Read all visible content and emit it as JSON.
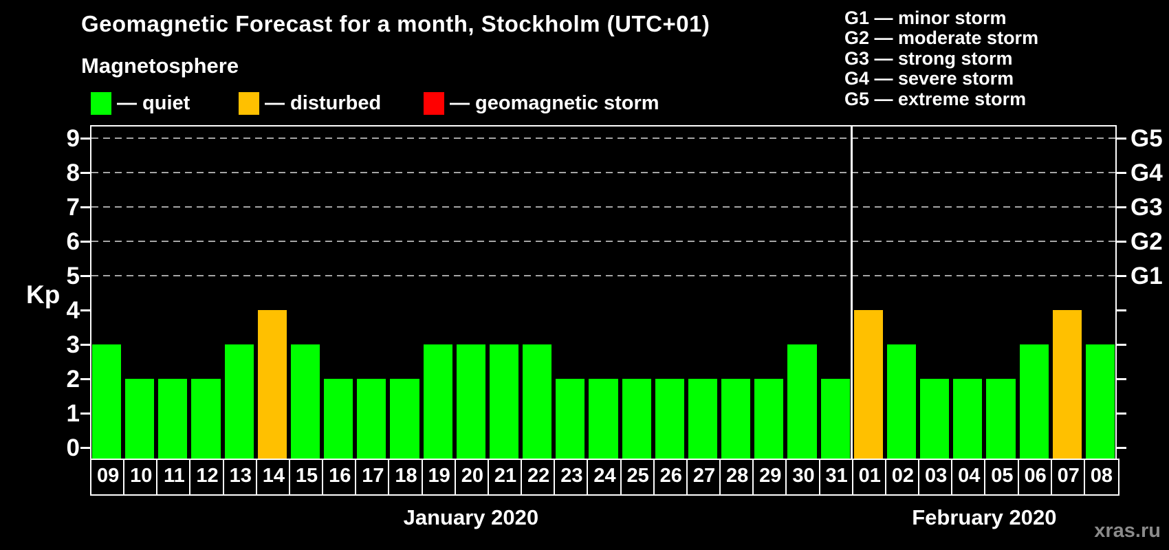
{
  "title": "Geomagnetic Forecast for a month, Stockholm (UTC+01)",
  "legend": {
    "heading": "Magnetosphere",
    "items": [
      {
        "key": "quiet",
        "label": "— quiet",
        "color": "#00ff00"
      },
      {
        "key": "disturbed",
        "label": "— disturbed",
        "color": "#ffc000"
      },
      {
        "key": "storm",
        "label": "— geomagnetic storm",
        "color": "#ff0000"
      }
    ]
  },
  "storm_scale": {
    "lines": [
      "G1 — minor storm",
      "G2 — moderate storm",
      "G3 — strong storm",
      "G4 — severe storm",
      "G5 — extreme storm"
    ]
  },
  "watermark": "xras.ru",
  "chart_data": {
    "type": "bar",
    "title": "Geomagnetic Forecast for a month, Stockholm (UTC+01)",
    "ylabel": "Kp",
    "ylim": [
      0,
      9
    ],
    "y_ticks": [
      0,
      1,
      2,
      3,
      4,
      5,
      6,
      7,
      8,
      9
    ],
    "grid_kp": [
      5,
      6,
      7,
      8,
      9
    ],
    "right_axis_labels": [
      {
        "kp": 5,
        "label": "G1"
      },
      {
        "kp": 6,
        "label": "G2"
      },
      {
        "kp": 7,
        "label": "G3"
      },
      {
        "kp": 8,
        "label": "G4"
      },
      {
        "kp": 9,
        "label": "G5"
      }
    ],
    "legend_position": "top",
    "grid": "horizontal-dashed",
    "groups": [
      {
        "month": "January 2020",
        "days": [
          {
            "day": "09",
            "kp": 3,
            "status": "quiet"
          },
          {
            "day": "10",
            "kp": 2,
            "status": "quiet"
          },
          {
            "day": "11",
            "kp": 2,
            "status": "quiet"
          },
          {
            "day": "12",
            "kp": 2,
            "status": "quiet"
          },
          {
            "day": "13",
            "kp": 3,
            "status": "quiet"
          },
          {
            "day": "14",
            "kp": 4,
            "status": "disturbed"
          },
          {
            "day": "15",
            "kp": 3,
            "status": "quiet"
          },
          {
            "day": "16",
            "kp": 2,
            "status": "quiet"
          },
          {
            "day": "17",
            "kp": 2,
            "status": "quiet"
          },
          {
            "day": "18",
            "kp": 2,
            "status": "quiet"
          },
          {
            "day": "19",
            "kp": 3,
            "status": "quiet"
          },
          {
            "day": "20",
            "kp": 3,
            "status": "quiet"
          },
          {
            "day": "21",
            "kp": 3,
            "status": "quiet"
          },
          {
            "day": "22",
            "kp": 3,
            "status": "quiet"
          },
          {
            "day": "23",
            "kp": 2,
            "status": "quiet"
          },
          {
            "day": "24",
            "kp": 2,
            "status": "quiet"
          },
          {
            "day": "25",
            "kp": 2,
            "status": "quiet"
          },
          {
            "day": "26",
            "kp": 2,
            "status": "quiet"
          },
          {
            "day": "27",
            "kp": 2,
            "status": "quiet"
          },
          {
            "day": "28",
            "kp": 2,
            "status": "quiet"
          },
          {
            "day": "29",
            "kp": 2,
            "status": "quiet"
          },
          {
            "day": "30",
            "kp": 3,
            "status": "quiet"
          },
          {
            "day": "31",
            "kp": 2,
            "status": "quiet"
          }
        ]
      },
      {
        "month": "February 2020",
        "days": [
          {
            "day": "01",
            "kp": 4,
            "status": "disturbed"
          },
          {
            "day": "02",
            "kp": 3,
            "status": "quiet"
          },
          {
            "day": "03",
            "kp": 2,
            "status": "quiet"
          },
          {
            "day": "04",
            "kp": 2,
            "status": "quiet"
          },
          {
            "day": "05",
            "kp": 2,
            "status": "quiet"
          },
          {
            "day": "06",
            "kp": 3,
            "status": "quiet"
          },
          {
            "day": "07",
            "kp": 4,
            "status": "disturbed"
          },
          {
            "day": "08",
            "kp": 3,
            "status": "quiet"
          }
        ]
      }
    ]
  }
}
